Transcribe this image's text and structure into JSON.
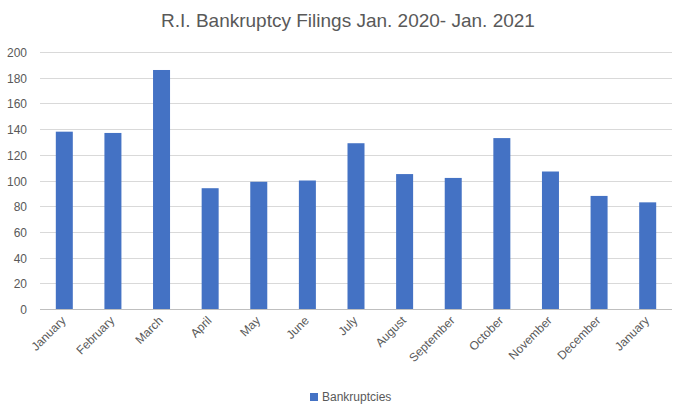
{
  "chart_data": {
    "type": "bar",
    "title": "R.I. Bankruptcy Filings Jan. 2020- Jan. 2021",
    "categories": [
      "January",
      "February",
      "March",
      "April",
      "May",
      "June",
      "July",
      "August",
      "September",
      "October",
      "November",
      "December",
      "January"
    ],
    "series": [
      {
        "name": "Bankruptcies",
        "color": "#4472c4",
        "values": [
          138,
          137,
          186,
          94,
          99,
          100,
          129,
          105,
          102,
          133,
          107,
          88,
          83
        ]
      }
    ],
    "ylim": [
      0,
      200
    ],
    "yticks": [
      0,
      20,
      40,
      60,
      80,
      100,
      120,
      140,
      160,
      180,
      200
    ],
    "grid": true,
    "legend": "bottom"
  }
}
